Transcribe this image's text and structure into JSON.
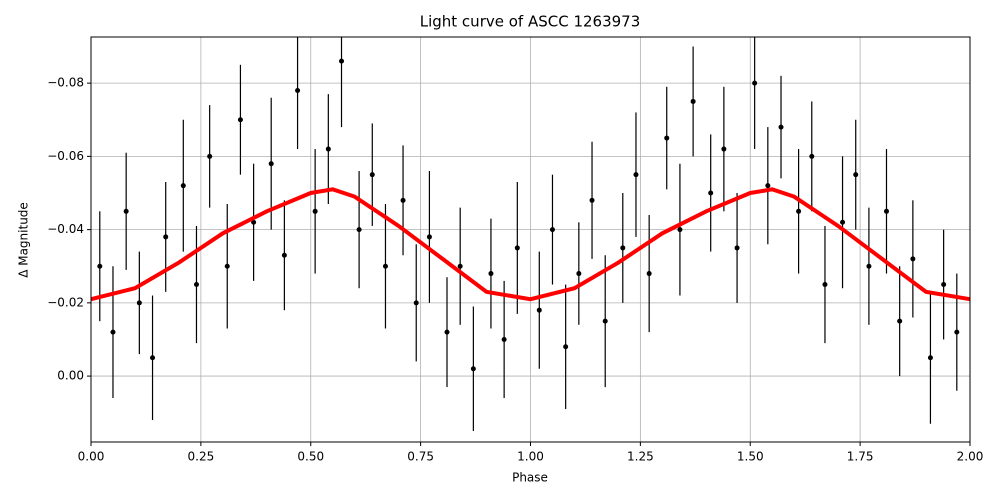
{
  "chart_data": {
    "type": "scatter",
    "title": "Light curve of ASCC 1263973",
    "xlabel": "Phase",
    "ylabel": "Δ Magnitude",
    "xlim": [
      0,
      2
    ],
    "ylim": [
      -0.0926,
      0.018
    ],
    "y_inverted": true,
    "grid": true,
    "xticks": [
      {
        "value": 0,
        "label": "0.00"
      },
      {
        "value": 0.25,
        "label": "0.25"
      },
      {
        "value": 0.5,
        "label": "0.50"
      },
      {
        "value": 0.75,
        "label": "0.75"
      },
      {
        "value": 1,
        "label": "1.00"
      },
      {
        "value": 1.25,
        "label": "1.25"
      },
      {
        "value": 1.5,
        "label": "1.50"
      },
      {
        "value": 1.75,
        "label": "1.75"
      },
      {
        "value": 2,
        "label": "2.00"
      }
    ],
    "yticks": [
      {
        "value": -0.08,
        "label": "−0.08"
      },
      {
        "value": -0.06,
        "label": "−0.06"
      },
      {
        "value": -0.04,
        "label": "−0.04"
      },
      {
        "value": -0.02,
        "label": "−0.02"
      },
      {
        "value": 0,
        "label": "0.00"
      }
    ],
    "points": {
      "color": "#000000",
      "x": [
        0.02,
        0.05,
        0.08,
        0.11,
        0.14,
        0.17,
        0.21,
        0.24,
        0.27,
        0.31,
        0.34,
        0.37,
        0.41,
        0.44,
        0.47,
        0.51,
        0.54,
        0.57,
        0.61,
        0.64,
        0.67,
        0.71,
        0.74,
        0.77,
        0.81,
        0.84,
        0.87,
        0.91,
        0.94,
        0.97,
        1.02,
        1.05,
        1.08,
        1.11,
        1.14,
        1.17,
        1.21,
        1.24,
        1.27,
        1.31,
        1.34,
        1.37,
        1.41,
        1.44,
        1.47,
        1.51,
        1.54,
        1.57,
        1.61,
        1.64,
        1.67,
        1.71,
        1.74,
        1.77,
        1.81,
        1.84,
        1.87,
        1.91,
        1.94,
        1.97
      ],
      "values": [
        -0.03,
        -0.012,
        -0.045,
        -0.02,
        -0.005,
        -0.038,
        -0.052,
        -0.025,
        -0.06,
        -0.03,
        -0.07,
        -0.042,
        -0.058,
        -0.033,
        -0.078,
        -0.045,
        -0.062,
        -0.086,
        -0.04,
        -0.055,
        -0.03,
        -0.048,
        -0.02,
        -0.038,
        -0.012,
        -0.03,
        -0.002,
        -0.028,
        -0.01,
        -0.035,
        -0.018,
        -0.04,
        -0.008,
        -0.028,
        -0.048,
        -0.015,
        -0.035,
        -0.055,
        -0.028,
        -0.065,
        -0.04,
        -0.075,
        -0.05,
        -0.062,
        -0.035,
        -0.08,
        -0.052,
        -0.068,
        -0.045,
        -0.06,
        -0.025,
        -0.042,
        -0.055,
        -0.03,
        -0.045,
        -0.015,
        -0.032,
        -0.005,
        -0.025,
        -0.012
      ],
      "errors": [
        0.015,
        0.018,
        0.016,
        0.014,
        0.017,
        0.015,
        0.018,
        0.016,
        0.014,
        0.017,
        0.015,
        0.016,
        0.018,
        0.015,
        0.016,
        0.017,
        0.015,
        0.018,
        0.016,
        0.014,
        0.017,
        0.015,
        0.016,
        0.018,
        0.015,
        0.016,
        0.017,
        0.015,
        0.016,
        0.018,
        0.016,
        0.015,
        0.017,
        0.014,
        0.016,
        0.018,
        0.015,
        0.017,
        0.016,
        0.014,
        0.018,
        0.015,
        0.016,
        0.017,
        0.015,
        0.018,
        0.016,
        0.014,
        0.017,
        0.015,
        0.016,
        0.018,
        0.015,
        0.016,
        0.017,
        0.015,
        0.016,
        0.018,
        0.015,
        0.016
      ]
    },
    "trend": {
      "color": "#ff0000",
      "x": [
        0,
        0.1,
        0.2,
        0.3,
        0.4,
        0.5,
        0.55,
        0.6,
        0.7,
        0.8,
        0.9,
        1,
        1.1,
        1.2,
        1.3,
        1.4,
        1.5,
        1.55,
        1.6,
        1.7,
        1.8,
        1.9,
        2
      ],
      "values": [
        -0.021,
        -0.024,
        -0.031,
        -0.039,
        -0.045,
        -0.05,
        -0.051,
        -0.049,
        -0.041,
        -0.032,
        -0.023,
        -0.021,
        -0.024,
        -0.031,
        -0.039,
        -0.045,
        -0.05,
        -0.051,
        -0.049,
        -0.041,
        -0.032,
        -0.023,
        -0.021
      ]
    }
  }
}
